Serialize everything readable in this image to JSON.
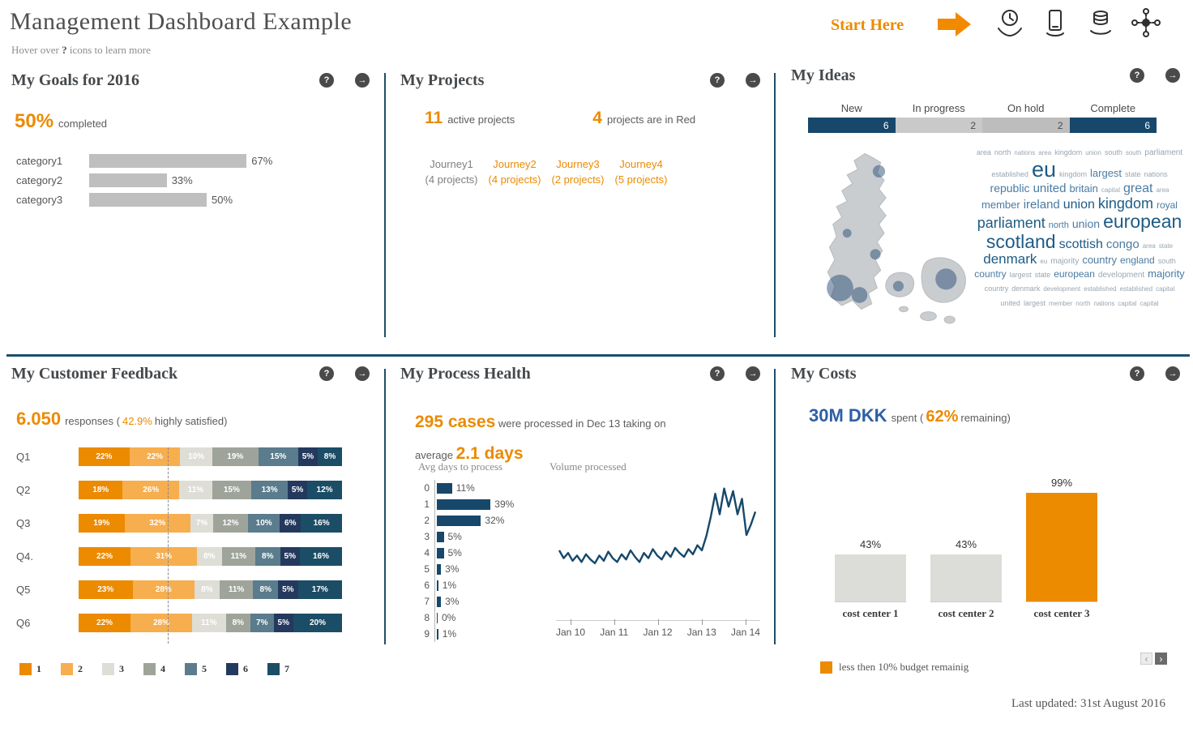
{
  "header": {
    "title": "Management Dashboard Example",
    "subtitle_prefix": "Hover over",
    "subtitle_qmark": "?",
    "subtitle_suffix": "icons to learn more",
    "start_here": "Start Here",
    "icon_names": [
      "clock-hands-icon",
      "mobile-device-icon",
      "coins-hand-icon",
      "org-network-icon"
    ]
  },
  "ui": {
    "help": "?",
    "arrow": "→",
    "pager_prev": "‹",
    "pager_next": "›"
  },
  "footer": {
    "last_updated": "Last updated:   31st August 2016"
  },
  "colors": {
    "accent_orange": "#EC8A00",
    "light_orange": "#F6AE4F",
    "navy": "#17486B",
    "divider_navy": "#1F4E6B",
    "blue_headline": "#2D5FA5",
    "bar_gray": "#BFBFBF",
    "cloud_dark": "#1E5B85",
    "cloud_mid": "#4A7BA3",
    "cloud_light": "#9AA6B0"
  },
  "panels": {
    "goals": {
      "title": "My Goals for 2016",
      "headline_value": "50%",
      "headline_label": "completed"
    },
    "projects": {
      "title": "My Projects",
      "active_value": "11",
      "active_label": "active projects",
      "red_value": "4",
      "red_label": "projects are in Red",
      "journeys": [
        {
          "name": "Journey1",
          "detail": "(4 projects)",
          "status": "normal"
        },
        {
          "name": "Journey2",
          "detail": "(4 projects)",
          "status": "red"
        },
        {
          "name": "Journey3",
          "detail": "(2 projects)",
          "status": "red"
        },
        {
          "name": "Journey4",
          "detail": "(5 projects)",
          "status": "red"
        }
      ]
    },
    "ideas": {
      "title": "My Ideas",
      "word_cloud": [
        {
          "t": "area",
          "s": 9,
          "c": "light"
        },
        {
          "t": "north",
          "s": 9,
          "c": "light"
        },
        {
          "t": "nations",
          "s": 8,
          "c": "light"
        },
        {
          "t": "area",
          "s": 8,
          "c": "light"
        },
        {
          "t": "kingdom",
          "s": 9,
          "c": "light"
        },
        {
          "t": "union",
          "s": 8,
          "c": "light"
        },
        {
          "t": "south",
          "s": 9,
          "c": "light"
        },
        {
          "t": "south",
          "s": 8,
          "c": "light"
        },
        {
          "t": "parliament",
          "s": 10,
          "c": "light"
        },
        {
          "t": "established",
          "s": 9,
          "c": "light"
        },
        {
          "t": "eu",
          "s": 27,
          "c": "dark"
        },
        {
          "t": "kingdom",
          "s": 9,
          "c": "light"
        },
        {
          "t": "largest",
          "s": 13,
          "c": "mid"
        },
        {
          "t": "state",
          "s": 9,
          "c": "light"
        },
        {
          "t": "nations",
          "s": 9,
          "c": "light"
        },
        {
          "t": "republic",
          "s": 14,
          "c": "mid"
        },
        {
          "t": "united",
          "s": 15,
          "c": "mid"
        },
        {
          "t": "britain",
          "s": 13,
          "c": "mid"
        },
        {
          "t": "capital",
          "s": 8,
          "c": "light"
        },
        {
          "t": "great",
          "s": 16,
          "c": "mid"
        },
        {
          "t": "area",
          "s": 8,
          "c": "light"
        },
        {
          "t": "member",
          "s": 13,
          "c": "mid"
        },
        {
          "t": "ireland",
          "s": 15,
          "c": "mid"
        },
        {
          "t": "union",
          "s": 16,
          "c": "dark"
        },
        {
          "t": "kingdom",
          "s": 18,
          "c": "dark"
        },
        {
          "t": "royal",
          "s": 12,
          "c": "mid"
        },
        {
          "t": "parliament",
          "s": 18,
          "c": "dark"
        },
        {
          "t": "north",
          "s": 11,
          "c": "mid"
        },
        {
          "t": "union",
          "s": 14,
          "c": "mid"
        },
        {
          "t": "european",
          "s": 23,
          "c": "dark"
        },
        {
          "t": "scotland",
          "s": 23,
          "c": "dark"
        },
        {
          "t": "scottish",
          "s": 16,
          "c": "dark"
        },
        {
          "t": "congo",
          "s": 15,
          "c": "mid"
        },
        {
          "t": "area",
          "s": 8,
          "c": "light"
        },
        {
          "t": "state",
          "s": 8,
          "c": "light"
        },
        {
          "t": "denmark",
          "s": 17,
          "c": "dark"
        },
        {
          "t": "eu",
          "s": 8,
          "c": "light"
        },
        {
          "t": "majority",
          "s": 10,
          "c": "light"
        },
        {
          "t": "country",
          "s": 13,
          "c": "mid"
        },
        {
          "t": "england",
          "s": 12,
          "c": "mid"
        },
        {
          "t": "south",
          "s": 9,
          "c": "light"
        },
        {
          "t": "country",
          "s": 12,
          "c": "mid"
        },
        {
          "t": "largest",
          "s": 9,
          "c": "light"
        },
        {
          "t": "state",
          "s": 9,
          "c": "light"
        },
        {
          "t": "european",
          "s": 12,
          "c": "mid"
        },
        {
          "t": "development",
          "s": 10,
          "c": "light"
        },
        {
          "t": "majority",
          "s": 13,
          "c": "mid"
        },
        {
          "t": "country",
          "s": 9,
          "c": "light"
        },
        {
          "t": "denmark",
          "s": 9,
          "c": "light"
        },
        {
          "t": "development",
          "s": 8,
          "c": "light"
        },
        {
          "t": "established",
          "s": 8,
          "c": "light"
        },
        {
          "t": "established",
          "s": 8,
          "c": "light"
        },
        {
          "t": "capital",
          "s": 8,
          "c": "light"
        },
        {
          "t": "united",
          "s": 9,
          "c": "light"
        },
        {
          "t": "largest",
          "s": 9,
          "c": "light"
        },
        {
          "t": "member",
          "s": 8,
          "c": "light"
        },
        {
          "t": "north",
          "s": 8,
          "c": "light"
        },
        {
          "t": "nations",
          "s": 8,
          "c": "light"
        },
        {
          "t": "capital",
          "s": 8,
          "c": "light"
        },
        {
          "t": "capital",
          "s": 8,
          "c": "light"
        }
      ]
    },
    "feedback": {
      "title": "My Customer Feedback",
      "headline_value": "6.050",
      "headline_mid": "responses (",
      "headline_pct": "42.9%",
      "headline_suffix": "highly satisfied)"
    },
    "process": {
      "title": "My Process Health",
      "headline_value": "295 cases",
      "headline_mid": "were processed in Dec 13 taking on",
      "headline_mid2": "average",
      "headline_days": "2.1 days"
    },
    "costs": {
      "title": "My Costs",
      "headline_value": "30M DKK",
      "headline_mid": "spent (",
      "headline_pct": "62%",
      "headline_suffix": "remaining)",
      "legend_label": "less then 10% budget remainig"
    }
  },
  "chart_data": [
    {
      "id": "goals",
      "type": "bar",
      "categories": [
        "category1",
        "category2",
        "category3"
      ],
      "values": [
        67,
        33,
        50
      ],
      "labels": [
        "67%",
        "33%",
        "50%"
      ],
      "xlim": [
        0,
        100
      ],
      "bar_color": "#BFBFBF"
    },
    {
      "id": "ideas_status",
      "type": "bar",
      "categories": [
        "New",
        "In progress",
        "On hold",
        "Complete"
      ],
      "values": [
        6,
        2,
        2,
        6
      ],
      "segment_colors": [
        "#17486B",
        "#C9C9C9",
        "#BDBDBD",
        "#17486B"
      ],
      "text_colors": [
        "#FFFFFF",
        "#4A4A4A",
        "#4A4A4A",
        "#FFFFFF"
      ]
    },
    {
      "id": "feedback",
      "type": "stacked-bar",
      "categories": [
        "Q1",
        "Q2",
        "Q3",
        "Q4.",
        "Q5",
        "Q6"
      ],
      "legend": [
        "1",
        "2",
        "3",
        "4",
        "5",
        "6",
        "7"
      ],
      "colors": [
        "#EC8A00",
        "#F6AE4F",
        "#DEDED6",
        "#9FA49B",
        "#5A7C8C",
        "#24395E",
        "#1C4D66"
      ],
      "rows": [
        [
          22,
          22,
          10,
          19,
          15,
          5,
          8
        ],
        [
          18,
          26,
          11,
          15,
          13,
          5,
          12
        ],
        [
          19,
          32,
          7,
          12,
          10,
          6,
          16
        ],
        [
          22,
          31,
          8,
          11,
          8,
          5,
          16
        ],
        [
          23,
          28,
          8,
          11,
          8,
          5,
          17
        ],
        [
          22,
          28,
          11,
          8,
          7,
          5,
          20
        ]
      ]
    },
    {
      "id": "process_hist",
      "type": "bar",
      "title": "Avg days to process",
      "categories": [
        "0",
        "1",
        "2",
        "3",
        "4",
        "5",
        "6",
        "7",
        "8",
        "9"
      ],
      "values": [
        11,
        39,
        32,
        5,
        5,
        3,
        1,
        3,
        0,
        1
      ],
      "labels": [
        "11%",
        "39%",
        "32%",
        "5%",
        "5%",
        "3%",
        "1%",
        "3%",
        "0%",
        "1%"
      ],
      "bar_color": "#17486B"
    },
    {
      "id": "process_volume",
      "type": "line",
      "title": "Volume processed",
      "x_labels": [
        "Jan 10",
        "Jan 11",
        "Jan 12",
        "Jan 13",
        "Jan 14"
      ],
      "points": [
        44,
        38,
        42,
        36,
        40,
        35,
        41,
        37,
        34,
        40,
        36,
        43,
        38,
        35,
        41,
        37,
        44,
        39,
        35,
        42,
        38,
        45,
        40,
        37,
        43,
        39,
        46,
        42,
        39,
        45,
        41,
        48,
        44,
        55,
        70,
        88,
        72,
        92,
        78,
        90,
        72,
        84,
        56,
        64,
        74
      ],
      "line_color": "#17486B"
    },
    {
      "id": "costs",
      "type": "bar",
      "categories": [
        "cost center 1",
        "cost center 2",
        "cost center 3"
      ],
      "values": [
        43,
        43,
        99
      ],
      "labels": [
        "43%",
        "43%",
        "99%"
      ],
      "bar_colors": [
        "#DCDCD8",
        "#DCDCD8",
        "#EC8A00"
      ]
    }
  ]
}
